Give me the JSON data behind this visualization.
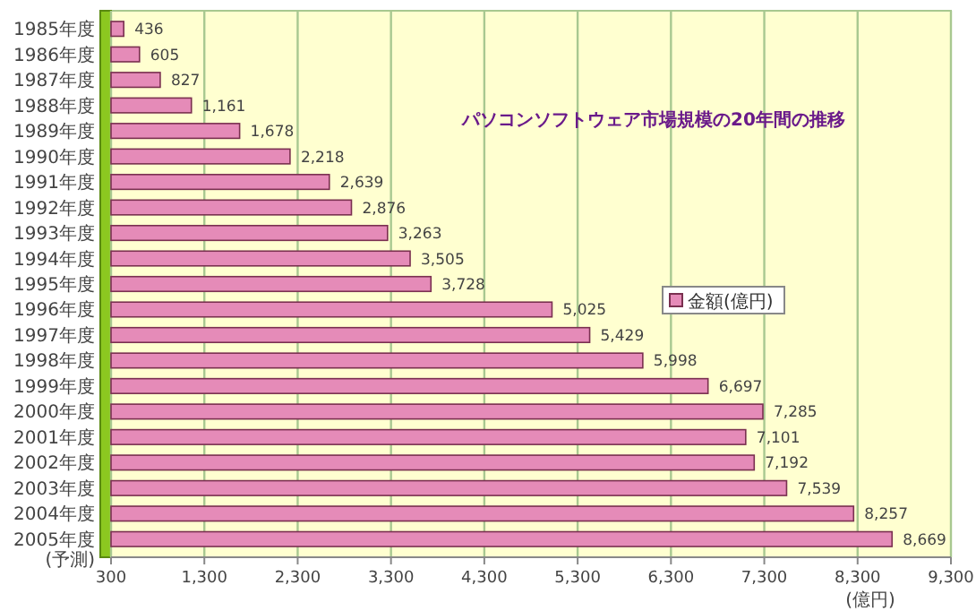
{
  "chart_data": {
    "type": "bar",
    "orientation": "horizontal",
    "title": "パソコンソフトウェア市場規模の20年間の推移",
    "xlabel": "(億円)",
    "categories": [
      "1985年度",
      "1986年度",
      "1987年度",
      "1988年度",
      "1989年度",
      "1990年度",
      "1991年度",
      "1992年度",
      "1993年度",
      "1994年度",
      "1995年度",
      "1996年度",
      "1997年度",
      "1998年度",
      "1999年度",
      "2000年度",
      "2001年度",
      "2002年度",
      "2003年度",
      "2004年度",
      "2005年度\n(予測)"
    ],
    "series": [
      {
        "name": "金額(億円)",
        "color": "#e58bb8",
        "values": [
          436,
          605,
          827,
          1161,
          1678,
          2218,
          2639,
          2876,
          3263,
          3505,
          3728,
          5025,
          5429,
          5998,
          6697,
          7285,
          7101,
          7192,
          7539,
          8257,
          8669
        ]
      }
    ],
    "value_labels": [
      "436",
      "605",
      "827",
      "1,161",
      "1,678",
      "2,218",
      "2,639",
      "2,876",
      "3,263",
      "3,505",
      "3,728",
      "5,025",
      "5,429",
      "5,998",
      "6,697",
      "7,285",
      "7,101",
      "7,192",
      "7,539",
      "8,257",
      "8,669"
    ],
    "xlim": [
      300,
      9300
    ],
    "xticks": [
      {
        "value": 300,
        "label": "300"
      },
      {
        "value": 1300,
        "label": "1,300"
      },
      {
        "value": 2300,
        "label": "2,300"
      },
      {
        "value": 3300,
        "label": "3,300"
      },
      {
        "value": 4300,
        "label": "4,300"
      },
      {
        "value": 5300,
        "label": "5,300"
      },
      {
        "value": 6300,
        "label": "6,300"
      },
      {
        "value": 7300,
        "label": "7,300"
      },
      {
        "value": 8300,
        "label": "8,300"
      },
      {
        "value": 9300,
        "label": "9,300"
      }
    ],
    "grid": "x",
    "legend": "right"
  }
}
